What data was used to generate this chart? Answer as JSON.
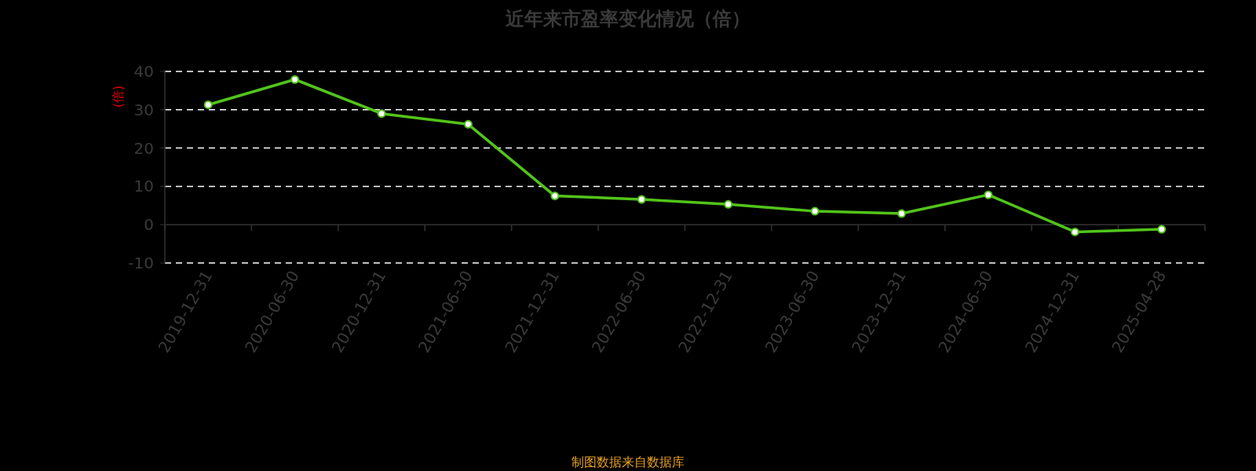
{
  "chart_data": {
    "type": "line",
    "title": "近年来市盈率变化情况（倍）",
    "ylabel": "(倍)",
    "categories": [
      "2019-12-31",
      "2020-06-30",
      "2020-12-31",
      "2021-06-30",
      "2021-12-31",
      "2022-06-30",
      "2022-12-31",
      "2023-06-30",
      "2023-12-31",
      "2024-06-30",
      "2024-12-31",
      "2025-04-28"
    ],
    "series": [
      {
        "color": "#52c41a",
        "values": [
          31.3,
          37.9,
          29.0,
          26.2,
          7.5,
          6.6,
          5.3,
          3.5,
          2.9,
          7.8,
          -1.9,
          -1.2
        ]
      }
    ],
    "ylim": [
      -10,
      40
    ],
    "yticks": [
      -10,
      0,
      10,
      20,
      30,
      40
    ],
    "grid": "y",
    "marker": "circle",
    "line_style": "solid",
    "annotations": [
      "制图数据来自数据库"
    ]
  }
}
